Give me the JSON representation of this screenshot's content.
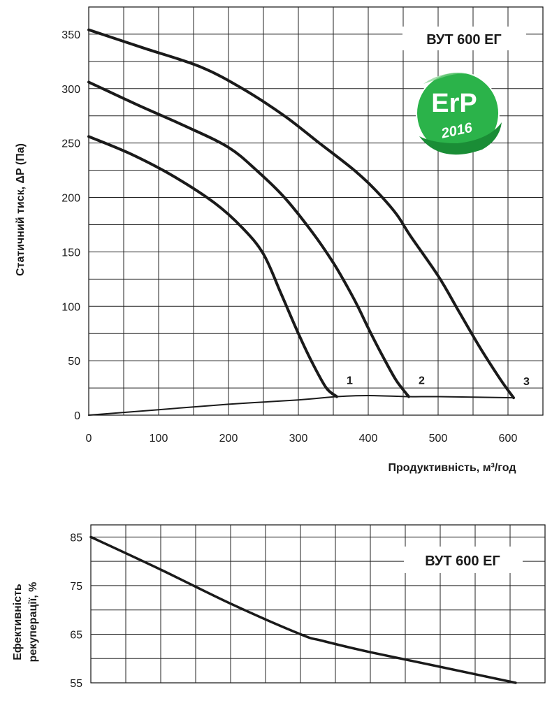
{
  "chart_data": [
    {
      "type": "line",
      "title": "ВУТ 600 ЕГ",
      "xlabel": "Продуктивність, м³/год",
      "ylabel": "Статичний тиск, ΔP (Па)",
      "xlim": [
        0,
        650
      ],
      "ylim": [
        0,
        375
      ],
      "x_ticks": [
        0,
        100,
        200,
        300,
        400,
        500,
        600
      ],
      "y_ticks": [
        0,
        50,
        100,
        150,
        200,
        250,
        300,
        350
      ],
      "grid": true,
      "series": [
        {
          "name": "1",
          "x": [
            0,
            60,
            120,
            180,
            220,
            250,
            275,
            300,
            320,
            340,
            355
          ],
          "y": [
            256,
            240,
            220,
            195,
            172,
            148,
            112,
            75,
            48,
            25,
            17
          ]
        },
        {
          "name": "2",
          "x": [
            0,
            70,
            140,
            200,
            240,
            280,
            320,
            350,
            370,
            385,
            400,
            420,
            440,
            458
          ],
          "y": [
            306,
            285,
            265,
            246,
            225,
            200,
            168,
            140,
            118,
            100,
            80,
            55,
            32,
            17
          ]
        },
        {
          "name": "3",
          "x": [
            0,
            80,
            160,
            220,
            280,
            330,
            380,
            410,
            440,
            460,
            500,
            530,
            560,
            590,
            608
          ],
          "y": [
            354,
            337,
            320,
            300,
            275,
            250,
            225,
            207,
            185,
            165,
            128,
            95,
            62,
            32,
            16
          ]
        },
        {
          "x": [
            0,
            100,
            200,
            300,
            355,
            400,
            458,
            500,
            608
          ],
          "y": [
            0,
            5,
            10,
            14,
            17,
            18,
            17,
            17,
            16
          ]
        }
      ],
      "curve_labels": [
        "1",
        "2",
        "3"
      ],
      "badge": {
        "main": "ErP",
        "sub": "2016",
        "color_main": "#2bb34a",
        "color_dark": "#1a8d36"
      }
    },
    {
      "type": "line",
      "title": "ВУТ 600 ЕГ",
      "ylabel": "Ефективність рекуперації, %",
      "xlim": [
        0,
        650
      ],
      "ylim": [
        55,
        87.5
      ],
      "y_ticks": [
        55,
        65,
        75,
        85
      ],
      "grid": true,
      "series": [
        {
          "x": [
            0,
            100,
            200,
            300,
            330,
            400,
            500,
            608
          ],
          "y": [
            85,
            78.3,
            71.3,
            65,
            63.7,
            61.3,
            58.3,
            55
          ]
        }
      ]
    }
  ]
}
